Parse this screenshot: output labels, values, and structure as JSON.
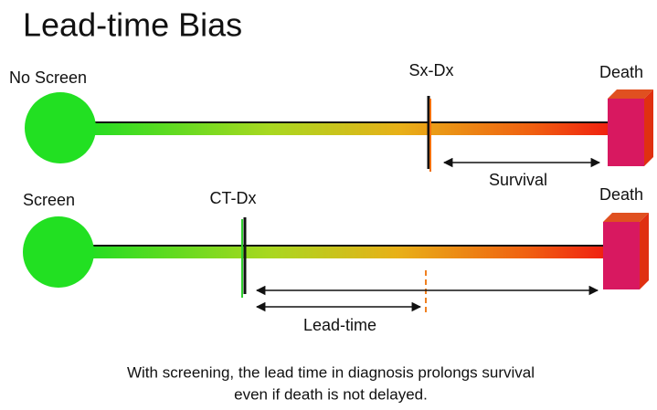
{
  "title": "Lead-time Bias",
  "rows": [
    {
      "label": "No Screen",
      "marker": "Sx-Dx",
      "end": "Death",
      "interval": "Survival"
    },
    {
      "label": "Screen",
      "marker": "CT-Dx",
      "end": "Death",
      "interval": "Lead-time"
    }
  ],
  "caption": [
    "With screening, the lead time in diagnosis prolongs survival",
    "even if death is not delayed."
  ]
}
